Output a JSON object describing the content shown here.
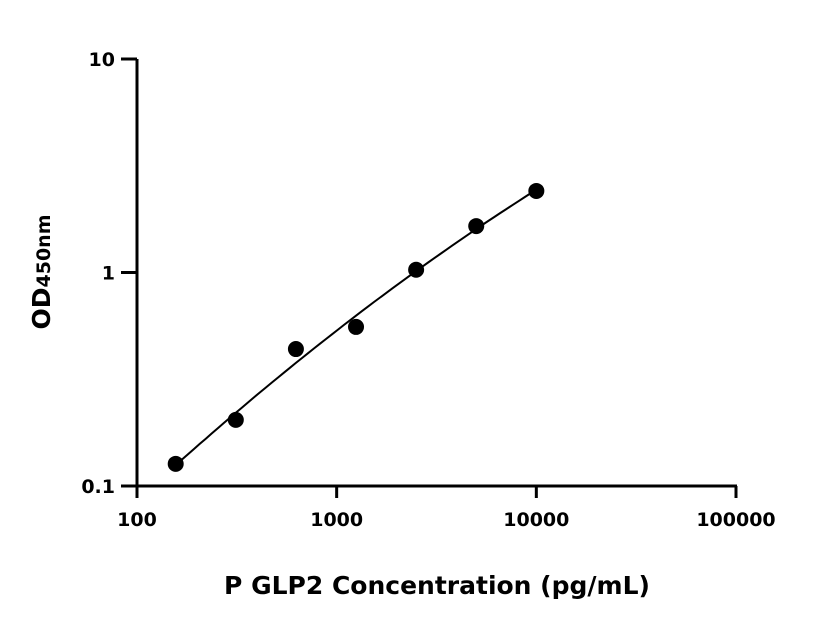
{
  "chart_data": {
    "type": "scatter",
    "title": "",
    "xlabel": "P GLP2 Concentration (pg/mL)",
    "ylabel": {
      "main": "OD",
      "subscript": "450nm"
    },
    "xscale": "log",
    "yscale": "log",
    "xlim": [
      100,
      100000
    ],
    "ylim": [
      0.1,
      10
    ],
    "xticks": [
      "100",
      "1000",
      "10000",
      "100000"
    ],
    "yticks": [
      "0.1",
      "1",
      "10"
    ],
    "grid": false,
    "legend": "none",
    "marker_color": "#000000",
    "fit_curve": true,
    "x": [
      156.25,
      312.5,
      625,
      1250,
      2500,
      5000,
      10000
    ],
    "y": [
      0.127,
      0.204,
      0.438,
      0.556,
      1.03,
      1.65,
      2.41
    ]
  }
}
